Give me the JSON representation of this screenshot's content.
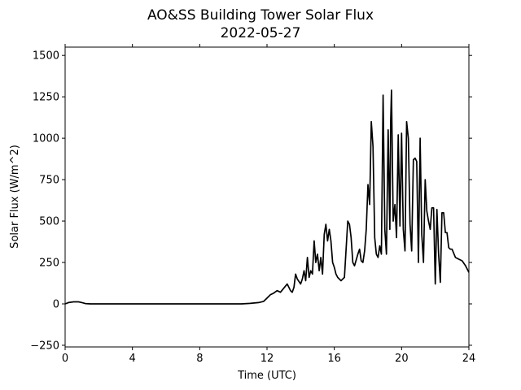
{
  "chart_data": {
    "type": "line",
    "title": "AO&SS Building Tower Solar Flux",
    "subtitle": "2022-05-27",
    "xlabel": "Time (UTC)",
    "ylabel": "Solar Flux (W/m^2)",
    "xlim": [
      0,
      24
    ],
    "ylim": [
      -260,
      1550
    ],
    "xticks": [
      0,
      4,
      8,
      12,
      16,
      20,
      24
    ],
    "yticks": [
      -250,
      0,
      250,
      500,
      750,
      1000,
      1250,
      1500
    ],
    "grid": false,
    "legend": "none",
    "series": [
      {
        "color": "#000000",
        "x": [
          0,
          0.2,
          0.5,
          0.8,
          1.0,
          1.2,
          1.5,
          2.0,
          4.0,
          6.0,
          8.0,
          10.0,
          10.5,
          11.0,
          11.5,
          11.8,
          12.0,
          12.2,
          12.4,
          12.6,
          12.8,
          13.0,
          13.2,
          13.4,
          13.5,
          13.6,
          13.7,
          13.8,
          14.0,
          14.1,
          14.2,
          14.3,
          14.4,
          14.5,
          14.6,
          14.7,
          14.8,
          14.9,
          15.0,
          15.1,
          15.2,
          15.3,
          15.4,
          15.5,
          15.6,
          15.7,
          15.8,
          15.9,
          16.0,
          16.1,
          16.2,
          16.4,
          16.6,
          16.8,
          16.9,
          17.0,
          17.1,
          17.2,
          17.4,
          17.5,
          17.6,
          17.7,
          17.8,
          17.9,
          18.0,
          18.1,
          18.2,
          18.3,
          18.4,
          18.5,
          18.6,
          18.7,
          18.8,
          18.9,
          19.0,
          19.1,
          19.2,
          19.3,
          19.35,
          19.4,
          19.5,
          19.6,
          19.7,
          19.8,
          19.9,
          20.0,
          20.1,
          20.2,
          20.3,
          20.4,
          20.5,
          20.6,
          20.7,
          20.8,
          20.9,
          21.0,
          21.1,
          21.2,
          21.3,
          21.4,
          21.5,
          21.6,
          21.7,
          21.8,
          21.9,
          22.0,
          22.1,
          22.2,
          22.3,
          22.4,
          22.5,
          22.6,
          22.7,
          22.8,
          22.9,
          23.0,
          23.2,
          23.4,
          23.6,
          23.8,
          24.0
        ],
        "y": [
          0,
          8,
          12,
          12,
          8,
          2,
          0,
          0,
          0,
          0,
          0,
          0,
          0,
          3,
          8,
          15,
          35,
          55,
          65,
          80,
          70,
          95,
          120,
          80,
          70,
          100,
          180,
          150,
          120,
          150,
          200,
          140,
          280,
          160,
          200,
          180,
          380,
          250,
          300,
          200,
          280,
          180,
          420,
          480,
          380,
          450,
          380,
          250,
          220,
          180,
          160,
          140,
          160,
          500,
          480,
          400,
          250,
          230,
          300,
          330,
          260,
          250,
          320,
          450,
          720,
          600,
          1100,
          950,
          400,
          300,
          280,
          350,
          300,
          1260,
          450,
          300,
          1050,
          450,
          1100,
          1290,
          500,
          600,
          400,
          1020,
          470,
          1030,
          450,
          320,
          1100,
          1000,
          480,
          320,
          870,
          880,
          860,
          250,
          1000,
          420,
          250,
          750,
          560,
          500,
          450,
          580,
          580,
          120,
          570,
          300,
          130,
          550,
          550,
          430,
          430,
          340,
          330,
          330,
          280,
          270,
          260,
          230,
          190
        ]
      }
    ]
  }
}
